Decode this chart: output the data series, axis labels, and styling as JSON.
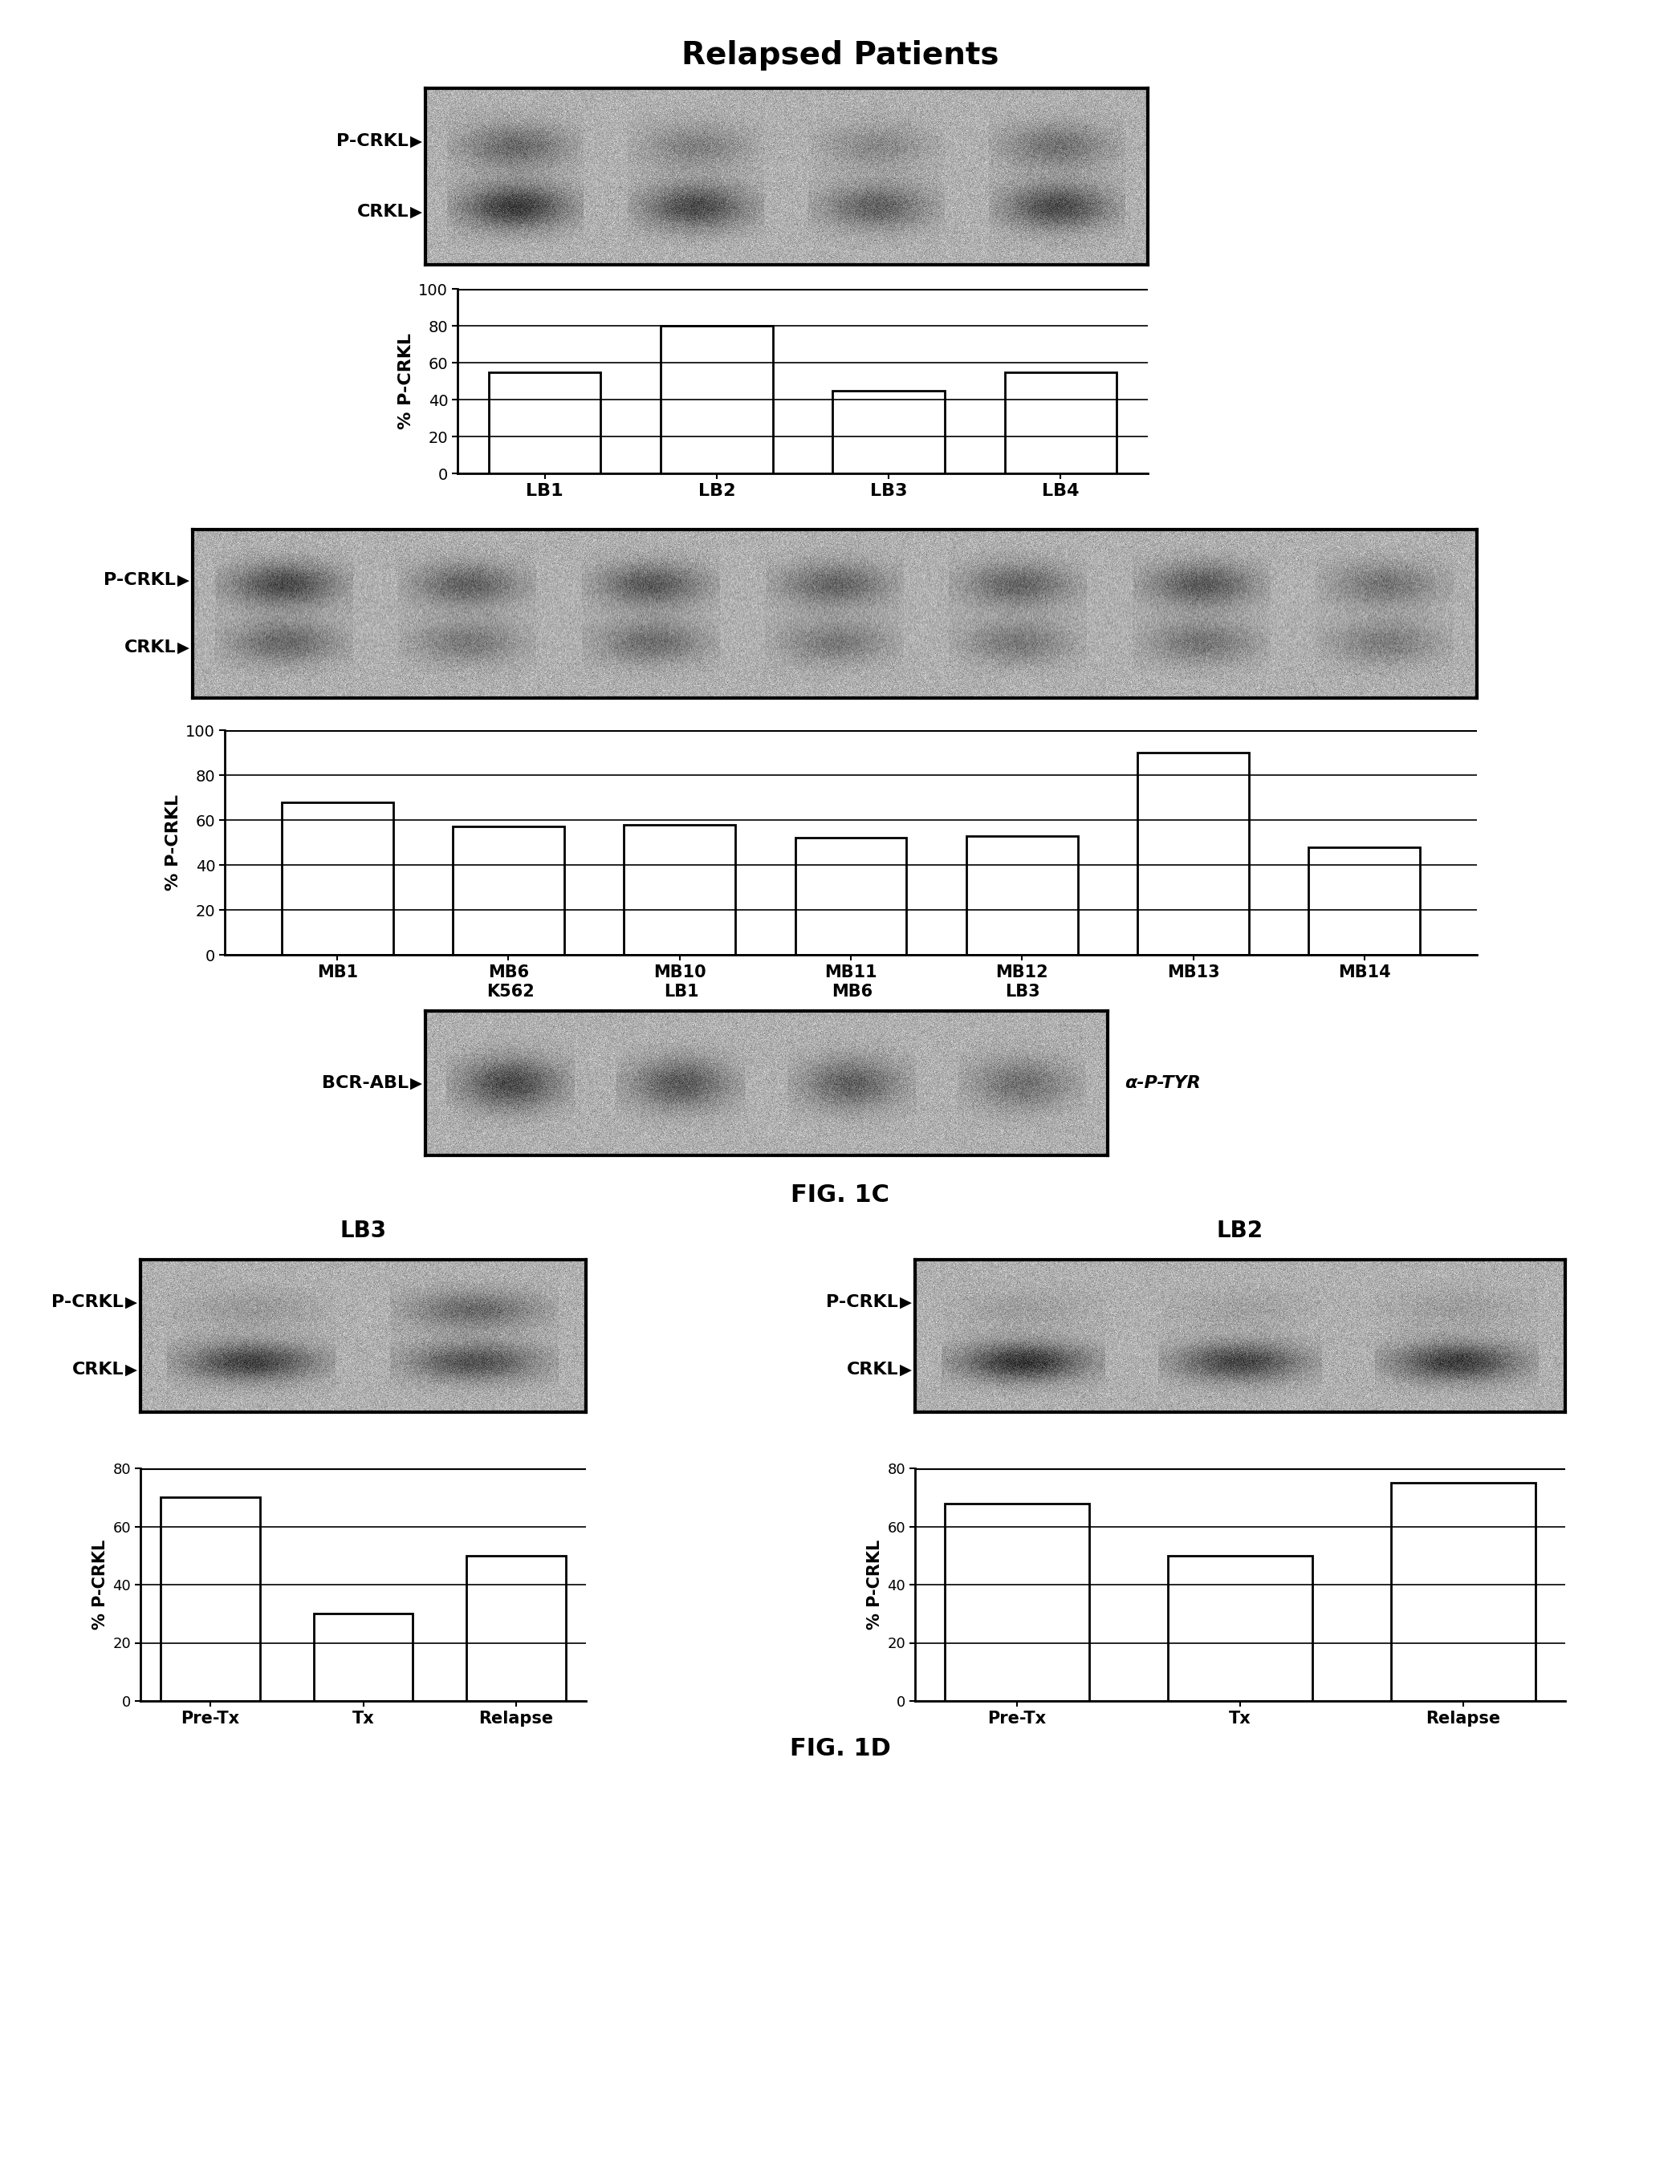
{
  "title_top": "Relapsed Patients",
  "fig1c_label": "FIG. 1C",
  "fig1d_label": "FIG. 1D",
  "bar1_categories": [
    "LB1",
    "LB2",
    "LB3",
    "LB4"
  ],
  "bar1_values": [
    55,
    80,
    45,
    55
  ],
  "bar1_ylim": [
    0,
    100
  ],
  "bar1_yticks": [
    0,
    20,
    40,
    60,
    80,
    100
  ],
  "bar1_ylabel": "% P-CRKL",
  "bar2_categories": [
    "MB1",
    "MB6",
    "MB10",
    "MB11",
    "MB12",
    "MB13",
    "MB14"
  ],
  "bar2_values": [
    68,
    57,
    58,
    52,
    53,
    90,
    48
  ],
  "bar2_ylim": [
    0,
    100
  ],
  "bar2_yticks": [
    0,
    20,
    40,
    60,
    80,
    100
  ],
  "bar2_ylabel": "% P-CRKL",
  "bar3_categories": [
    "Pre-Tx",
    "Tx",
    "Relapse"
  ],
  "bar3_values": [
    70,
    30,
    50
  ],
  "bar3_ylim": [
    0,
    80
  ],
  "bar3_yticks": [
    0,
    20,
    40,
    60,
    80
  ],
  "bar3_ylabel": "% P-CRKL",
  "bar4_categories": [
    "Pre-Tx",
    "Tx",
    "Relapse"
  ],
  "bar4_values": [
    68,
    50,
    75
  ],
  "bar4_ylim": [
    0,
    80
  ],
  "bar4_yticks": [
    0,
    20,
    40,
    60,
    80
  ],
  "bar4_ylabel": "% P-CRKL",
  "blot1_label_top": "P-CRKL",
  "blot1_label_bottom": "CRKL",
  "blot2_label_top": "P-CRKL",
  "blot2_label_bottom": "CRKL",
  "blot3_bcr_label": "BCR-ABL",
  "blot3_right_label": "α-P-TYR",
  "blot3_top_labels": [
    "K562",
    "LB1",
    "MB6",
    "LB3"
  ],
  "blot_lb3_title": "LB3",
  "blot_lb2_title": "LB2",
  "blot_lb3_label_top": "P-CRKL",
  "blot_lb3_label_bottom": "CRKL",
  "blot_lb2_label_top": "P-CRKL",
  "blot_lb2_label_bottom": "CRKL",
  "bg_color": "#ffffff",
  "bar_color": "#ffffff",
  "bar_edge_color": "#000000"
}
